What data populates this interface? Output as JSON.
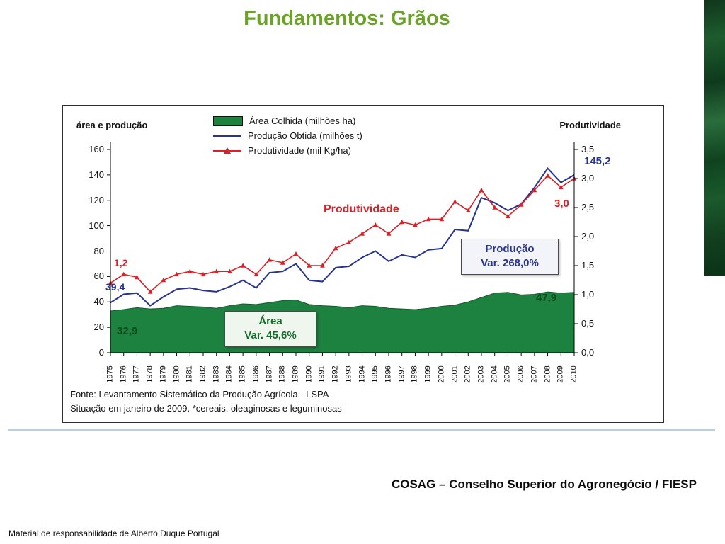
{
  "slide": {
    "title": "Fundamentos: Grãos",
    "credit": "COSAG – Conselho Superior do Agronegócio / FIESP",
    "footer": "Material de responsabilidade de Alberto Duque Portugal"
  },
  "colors": {
    "title_green": "#6ba32a",
    "area_green": "#1d8140",
    "line_blue": "#27348f",
    "line_red": "#dd1f26",
    "divider_blue": "#b6cfe2"
  },
  "chart": {
    "left_axis_title": "área e produção",
    "right_axis_title": "Produtividade",
    "legend": [
      {
        "label": "Área Colhida (milhões ha)"
      },
      {
        "label": "Produção Obtida (milhões t)"
      },
      {
        "label": "Produtividade (mil Kg/ha)"
      }
    ],
    "annotations": {
      "productivity_start": "1,2",
      "production_start": "39,4",
      "area_start": "32,9",
      "productivity_label": "Produtividade",
      "area_box_line1": "Área",
      "area_box_line2": "Var. 45,6%",
      "production_box_line1": "Produção",
      "production_box_line2": "Var. 268,0%",
      "production_end": "145,2",
      "productivity_end": "3,0",
      "area_end": "47,9"
    },
    "source_line1": "Fonte: Levantamento Sistemático da Produção Agrícola - LSPA",
    "source_line2": "Situação em janeiro de 2009. *cereais, oleaginosas e leguminosas"
  },
  "chart_data": {
    "type": "combo (area + line + line-marker)",
    "categories": [
      "1975",
      "1976",
      "1977",
      "1978",
      "1979",
      "1980",
      "1981",
      "1982",
      "1983",
      "1984",
      "1985",
      "1986",
      "1987",
      "1988",
      "1989",
      "1990",
      "1991",
      "1992",
      "1993",
      "1994",
      "1995",
      "1996",
      "1997",
      "1998",
      "1999",
      "2000",
      "2001",
      "2002",
      "2003",
      "2004",
      "2005",
      "2006",
      "2007",
      "2008",
      "2009",
      "2010"
    ],
    "left_axis": {
      "label": "área e produção",
      "min": 0,
      "max": 160,
      "step": 20
    },
    "right_axis": {
      "label": "Produtividade",
      "min": 0,
      "max": 3.5,
      "step": 0.5
    },
    "grid": false,
    "legend_position": "top-center",
    "series": [
      {
        "name": "Área Colhida (milhões ha)",
        "type": "area",
        "axis": "left",
        "color": "#1d8140",
        "stroke": "#0e5f2b",
        "values": [
          32.9,
          34,
          35.5,
          34.5,
          35,
          37,
          36.5,
          36,
          35,
          37,
          38.5,
          38,
          39.5,
          41,
          41.5,
          38,
          37,
          36.5,
          35.5,
          37,
          36.5,
          35,
          34.5,
          34,
          35,
          36.5,
          37.5,
          40,
          43.5,
          47,
          47.5,
          45.5,
          46,
          47.9,
          47,
          47.5
        ]
      },
      {
        "name": "Produção Obtida (milhões t)",
        "type": "line",
        "axis": "left",
        "color": "#27348f",
        "values": [
          39.4,
          46,
          47,
          37,
          44,
          50,
          51,
          49,
          48,
          52,
          57,
          51,
          63,
          64,
          70,
          57,
          56,
          67,
          68,
          75,
          80,
          72,
          77,
          75,
          81,
          82,
          97,
          96,
          122,
          118,
          112,
          117,
          130,
          145.2,
          134,
          140
        ]
      },
      {
        "name": "Produtividade (mil Kg/ha)",
        "type": "line-marker",
        "axis": "right",
        "color": "#dd1f26",
        "values": [
          1.2,
          1.35,
          1.3,
          1.05,
          1.25,
          1.35,
          1.4,
          1.35,
          1.4,
          1.4,
          1.5,
          1.35,
          1.6,
          1.55,
          1.7,
          1.5,
          1.5,
          1.8,
          1.9,
          2.05,
          2.2,
          2.05,
          2.25,
          2.2,
          2.3,
          2.3,
          2.6,
          2.45,
          2.8,
          2.5,
          2.35,
          2.55,
          2.8,
          3.05,
          2.85,
          3.0
        ]
      }
    ]
  }
}
